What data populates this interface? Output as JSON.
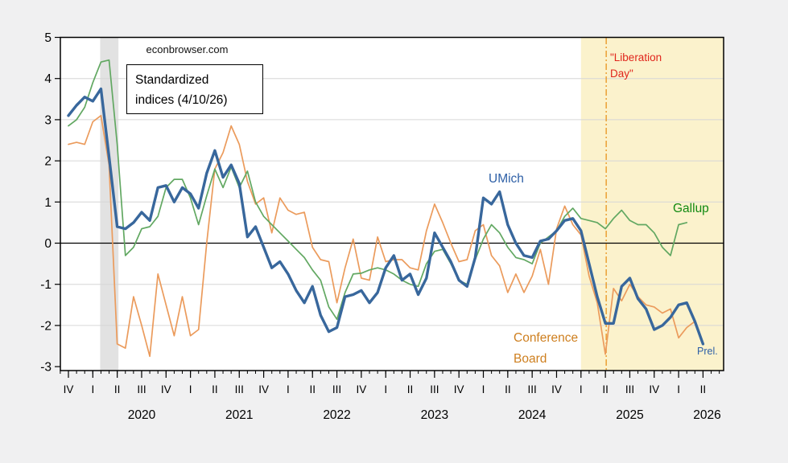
{
  "figure": {
    "watermark": "econbrowser.com",
    "note_line1": "Standardized",
    "note_line2": "indices (4/10/26)",
    "liberation_line1": "\"Liberation",
    "liberation_line2": "Day\"",
    "label_umich": "UMich",
    "label_gallup": "Gallup",
    "label_conference_line1": "Conference",
    "label_conference_line2": "Board",
    "label_prel": "Prel."
  },
  "colors": {
    "umich": "#38679c",
    "gallup": "#62a862",
    "conference": "#eb9b5c",
    "umich_label": "#2d5fa6",
    "gallup_label": "#128a12",
    "conference_label": "#ce7f1f",
    "liberation_text": "#e0251c",
    "vline": "#e8931c",
    "recession_band": "#e2e2e2",
    "highlight_band": "#fbf2cc",
    "grid": "#d6d6d6",
    "zero_line": "#000000",
    "frame": "#000000",
    "plot_bg": "#ffffff",
    "page_bg": "#f0f0f1"
  },
  "chart_data": {
    "type": "line",
    "title": "Standardized indices (4/10/26)",
    "source_note": "econbrowser.com",
    "x_axis": {
      "start": "2019-10",
      "unit": "month",
      "quarter_labels": [
        "IV",
        "I",
        "II",
        "III",
        "IV",
        "I",
        "II",
        "III",
        "IV",
        "I",
        "II",
        "III",
        "IV",
        "I",
        "II",
        "III",
        "IV",
        "I",
        "II",
        "III",
        "IV",
        "I",
        "II",
        "III",
        "IV",
        "I",
        "II"
      ],
      "quarter_label_months": [
        0,
        3,
        6,
        9,
        12,
        15,
        18,
        21,
        24,
        27,
        30,
        33,
        36,
        39,
        42,
        45,
        48,
        51,
        54,
        57,
        60,
        63,
        66,
        69,
        72,
        75,
        78
      ],
      "year_labels": [
        {
          "label": "2020",
          "month": 9
        },
        {
          "label": "2021",
          "month": 21
        },
        {
          "label": "2022",
          "month": 33
        },
        {
          "label": "2023",
          "month": 45
        },
        {
          "label": "2024",
          "month": 57
        },
        {
          "label": "2025",
          "month": 69
        },
        {
          "label": "2026",
          "month": 78.5
        }
      ],
      "xlim_months": [
        -1,
        80.5
      ]
    },
    "y_axis": {
      "ticks": [
        5,
        4,
        3,
        2,
        1,
        0,
        -1,
        -2,
        -3
      ],
      "ylim": [
        -3,
        5
      ],
      "grid": true
    },
    "bands": [
      {
        "name": "2020-recession-band",
        "from_month": 3.9,
        "to_month": 6.15,
        "color_key": "recession_band"
      },
      {
        "name": "2025-highlight-band",
        "from_month": 63,
        "to_month": 80.5,
        "color_key": "highlight_band"
      }
    ],
    "vline": {
      "name": "Liberation Day",
      "month": 66.1,
      "color_key": "vline",
      "style": "dash-dot"
    },
    "series": [
      {
        "name": "Conference Board",
        "color_key": "conference",
        "width": 1.7,
        "start_month": 0,
        "values": [
          2.4,
          2.45,
          2.4,
          2.95,
          3.1,
          1.9,
          -2.45,
          -2.55,
          -1.3,
          -2.0,
          -2.75,
          -0.75,
          -1.5,
          -2.25,
          -1.3,
          -2.25,
          -2.1,
          0.0,
          1.8,
          2.2,
          2.85,
          2.4,
          1.5,
          0.95,
          1.1,
          0.25,
          1.1,
          0.8,
          0.7,
          0.75,
          -0.1,
          -0.4,
          -0.45,
          -1.45,
          -0.6,
          0.1,
          -0.85,
          -0.9,
          0.15,
          -0.45,
          -0.4,
          -0.4,
          -0.6,
          -0.65,
          0.3,
          0.95,
          0.5,
          0.0,
          -0.45,
          -0.4,
          0.3,
          0.45,
          -0.3,
          -0.55,
          -1.2,
          -0.75,
          -1.2,
          -0.8,
          -0.15,
          -1.0,
          0.35,
          0.9,
          0.45,
          0.2,
          -0.8,
          -1.45,
          -2.7,
          -1.1,
          -1.4,
          -1.0,
          -1.3,
          -1.5,
          -1.55,
          -1.7,
          -1.6,
          -2.3,
          -2.05,
          -1.9
        ]
      },
      {
        "name": "Gallup",
        "color_key": "gallup",
        "width": 1.7,
        "start_month": 0,
        "values": [
          2.85,
          3.0,
          3.3,
          3.9,
          4.4,
          4.45,
          2.4,
          -0.3,
          -0.1,
          0.35,
          0.4,
          0.65,
          1.35,
          1.55,
          1.55,
          1.1,
          0.45,
          1.15,
          1.8,
          1.35,
          1.85,
          1.35,
          1.75,
          1.0,
          0.65,
          0.45,
          0.25,
          0.05,
          -0.15,
          -0.35,
          -0.65,
          -0.9,
          -1.55,
          -1.85,
          -1.2,
          -0.75,
          -0.73,
          -0.65,
          -0.6,
          -0.65,
          -0.75,
          -0.9,
          -1.0,
          -1.05,
          -0.5,
          -0.2,
          -0.15,
          -0.5,
          -0.9,
          -1.0,
          -0.4,
          0.1,
          0.45,
          0.25,
          -0.1,
          -0.35,
          -0.4,
          -0.5,
          0.0,
          0.15,
          0.3,
          0.65,
          0.85,
          0.6,
          0.55,
          0.5,
          0.35,
          0.6,
          0.8,
          0.55,
          0.45,
          0.45,
          0.25,
          -0.1,
          -0.3,
          0.45,
          0.5
        ]
      },
      {
        "name": "UMich",
        "color_key": "umich",
        "width": 3.4,
        "start_month": 0,
        "values": [
          3.1,
          3.35,
          3.55,
          3.45,
          3.75,
          2.1,
          0.4,
          0.35,
          0.5,
          0.75,
          0.55,
          1.35,
          1.4,
          1.0,
          1.35,
          1.2,
          0.85,
          1.7,
          2.25,
          1.6,
          1.9,
          1.45,
          0.15,
          0.4,
          -0.1,
          -0.6,
          -0.45,
          -0.75,
          -1.15,
          -1.45,
          -1.05,
          -1.75,
          -2.15,
          -2.05,
          -1.3,
          -1.25,
          -1.15,
          -1.45,
          -1.2,
          -0.6,
          -0.3,
          -0.9,
          -0.75,
          -1.25,
          -0.85,
          0.25,
          -0.1,
          -0.45,
          -0.9,
          -1.05,
          -0.35,
          1.1,
          0.95,
          1.25,
          0.45,
          0.0,
          -0.3,
          -0.35,
          0.05,
          0.1,
          0.3,
          0.55,
          0.6,
          0.3,
          -0.5,
          -1.3,
          -1.95,
          -1.95,
          -1.05,
          -0.85,
          -1.35,
          -1.6,
          -2.1,
          -2.0,
          -1.8,
          -1.5,
          -1.45,
          -1.9,
          -2.45
        ]
      }
    ],
    "annotations": [
      {
        "text": "\"Liberation Day\"",
        "color_key": "liberation_text"
      },
      {
        "text": "UMich",
        "color_key": "umich_label"
      },
      {
        "text": "Gallup",
        "color_key": "gallup_label"
      },
      {
        "text": "Conference Board",
        "color_key": "conference_label"
      },
      {
        "text": "Prel.",
        "color_key": "umich_label"
      }
    ]
  }
}
